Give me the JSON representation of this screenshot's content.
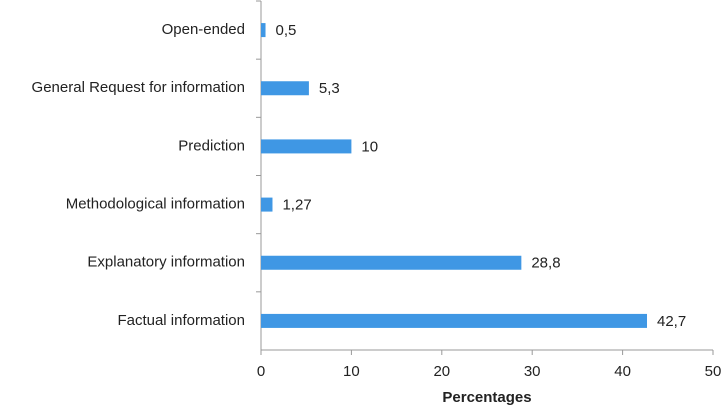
{
  "chart_data": {
    "type": "hbar",
    "categories": [
      "Open-ended",
      "General Request for information",
      "Prediction",
      "Methodological information",
      "Explanatory information",
      "Factual information"
    ],
    "values": [
      0.5,
      5.3,
      10,
      1.27,
      28.8,
      42.7
    ],
    "value_labels": [
      "0,5",
      "5,3",
      "10",
      "1,27",
      "28,8",
      "42,7"
    ],
    "color": "#3f97e4",
    "xlabel": "Percentages",
    "xlim": [
      0,
      50
    ],
    "xticks": [
      0,
      10,
      20,
      30,
      40,
      50
    ],
    "grid": false
  }
}
